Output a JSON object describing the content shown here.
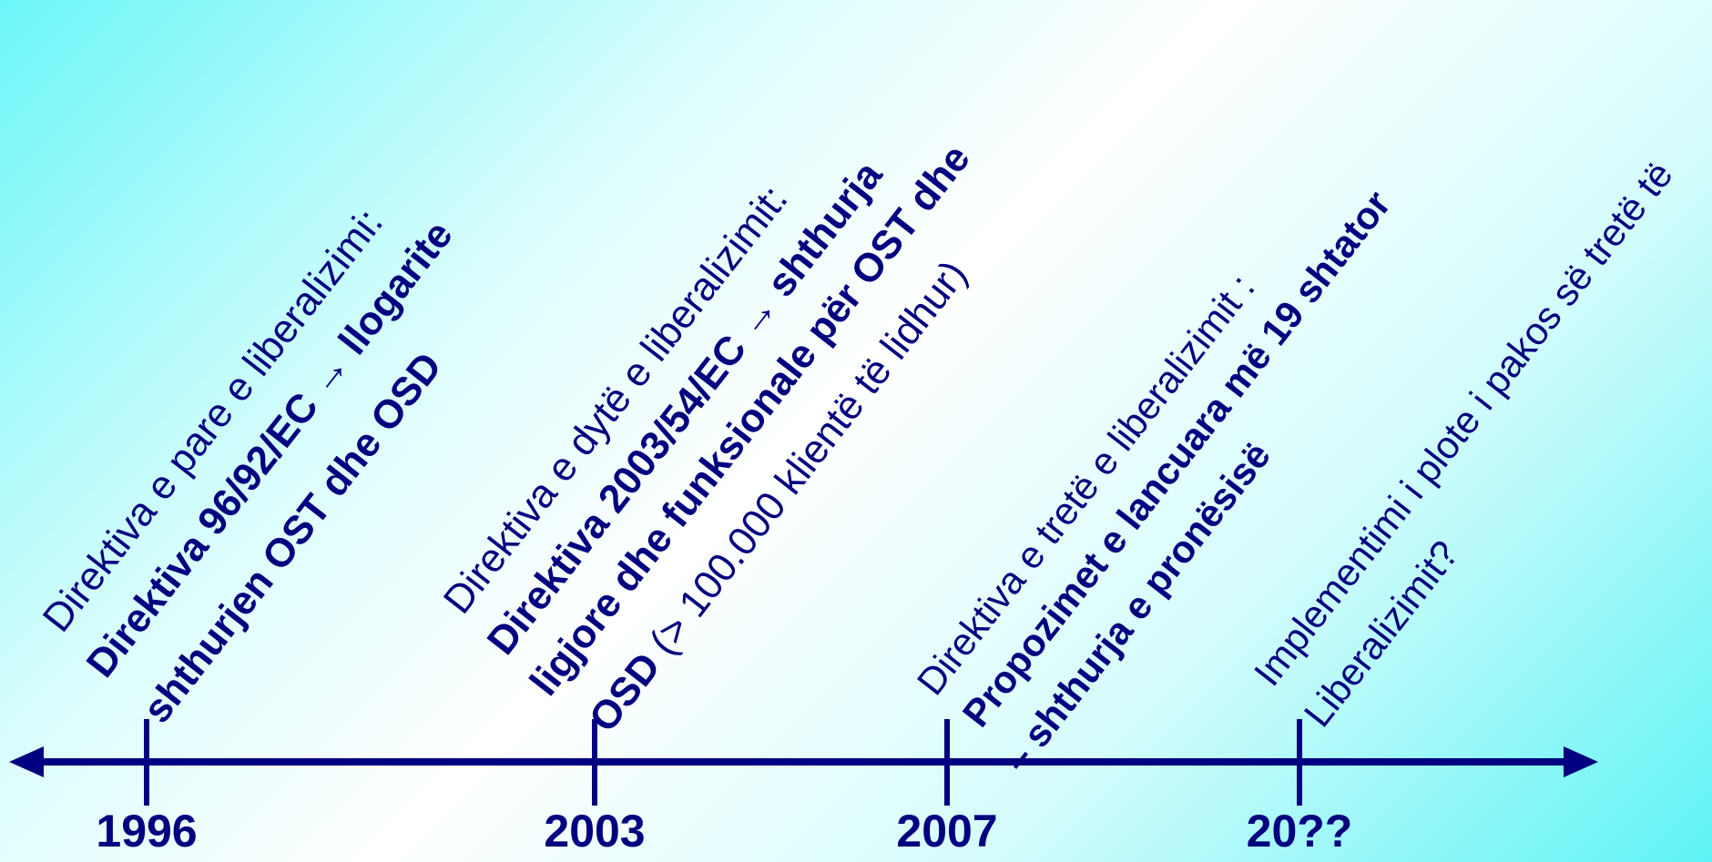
{
  "colors": {
    "timeline": "#000080",
    "text": "#000080",
    "background_edge": "#6cf6f8",
    "background_center": "#ffffff"
  },
  "years": [
    "1996",
    "2003",
    "2007",
    "20??"
  ],
  "events": [
    {
      "lines": [
        {
          "parts": [
            {
              "text": "Direktiva e pare e liberalizimi:",
              "style": "light"
            }
          ]
        },
        {
          "parts": [
            {
              "text": "Direktiva 96/92/EC → llogarite",
              "style": "bold"
            }
          ]
        },
        {
          "parts": [
            {
              "text": "shthurjen OST dhe OSD",
              "style": "bold"
            }
          ]
        }
      ]
    },
    {
      "lines": [
        {
          "parts": [
            {
              "text": "Direktiva e dytë e liberalizimit:",
              "style": "light"
            }
          ]
        },
        {
          "parts": [
            {
              "text": "Direktiva 2003/54/EC → shthurja",
              "style": "bold"
            }
          ]
        },
        {
          "parts": [
            {
              "text": "ligjore dhe funksionale për OST dhe",
              "style": "bold"
            }
          ]
        },
        {
          "parts": [
            {
              "text": "OSD",
              "style": "bold"
            },
            {
              "text": " (> 100.000 klientë të lidhur)",
              "style": "light"
            }
          ]
        }
      ]
    },
    {
      "lines": [
        {
          "parts": [
            {
              "text": "Direktiva e tretë e liberalizimit :",
              "style": "light"
            }
          ]
        },
        {
          "parts": [
            {
              "text": "Propozimet e lancuara më 19 shtator",
              "style": "bold"
            }
          ]
        },
        {
          "parts": [
            {
              "text": "– shthurja e pronësisë",
              "style": "bold"
            }
          ]
        }
      ]
    },
    {
      "lines": [
        {
          "parts": [
            {
              "text": "Implementimi i plote i pakos së tretë të",
              "style": "light"
            }
          ]
        },
        {
          "parts": [
            {
              "text": "Liberalizimit?",
              "style": "light"
            }
          ]
        }
      ]
    }
  ]
}
